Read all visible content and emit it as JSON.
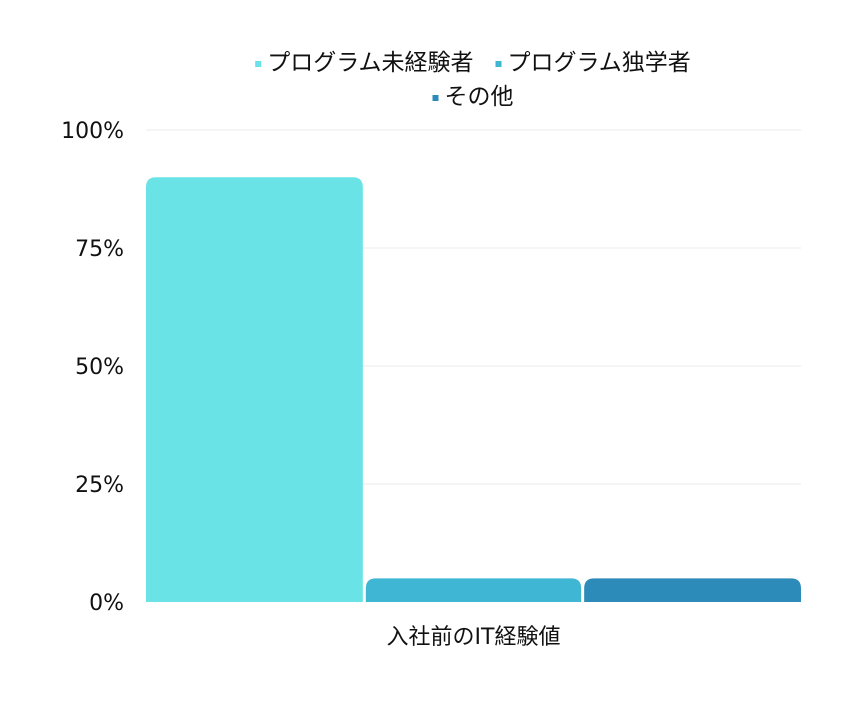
{
  "chart_data": {
    "type": "bar",
    "categories": [
      "入社前のIT経験値"
    ],
    "series": [
      {
        "name": "プログラム未経験者",
        "values": [
          90
        ],
        "color": "#6ae3e6"
      },
      {
        "name": "プログラム独学者",
        "values": [
          5
        ],
        "color": "#3fb6d3"
      },
      {
        "name": "その他",
        "values": [
          5
        ],
        "color": "#2d8bb9"
      }
    ],
    "title": "",
    "xlabel": "",
    "ylabel": "",
    "ylim": [
      0,
      100
    ],
    "yticks": [
      0,
      25,
      50,
      75,
      100
    ],
    "ytick_labels": [
      "0%",
      "25%",
      "50%",
      "75%",
      "100%"
    ],
    "grid": true,
    "legend": "top-center"
  }
}
